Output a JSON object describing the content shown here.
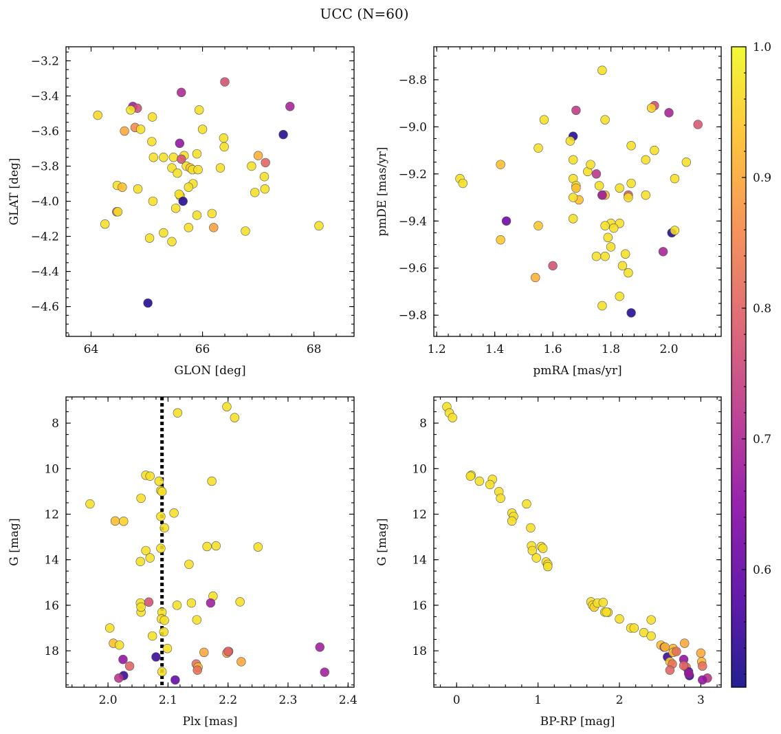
{
  "figure": {
    "title": "UCC (N=60)"
  },
  "colorbar": {
    "range": [
      0.51,
      1.0
    ],
    "ticks": [
      0.6,
      0.7,
      0.8,
      0.9,
      1.0
    ],
    "tick_labels": [
      "0.6",
      "0.7",
      "0.8",
      "0.9",
      "1.0"
    ],
    "colormap": [
      "#0d0887",
      "#5302a3",
      "#8b0aa5",
      "#b83289",
      "#db5c68",
      "#f48849",
      "#febd2a",
      "#f0f921"
    ]
  },
  "chart_data": [
    {
      "type": "scatter",
      "name": "panel-glon-glat",
      "xlabel": "GLON [deg]",
      "ylabel": "GLAT [deg]",
      "xlim": [
        63.55,
        68.72
      ],
      "ylim": [
        -4.77,
        -3.12
      ],
      "y_inverted": false,
      "xticks": [
        64,
        66,
        68
      ],
      "xtick_labels": [
        "64",
        "66",
        "68"
      ],
      "yticks": [
        -4.6,
        -4.4,
        -4.2,
        -4.0,
        -3.8,
        -3.6,
        -3.4,
        -3.2
      ],
      "ytick_labels": [
        "−4.6",
        "−4.4",
        "−4.2",
        "−4.0",
        "−3.8",
        "−3.6",
        "−3.4",
        "−3.2"
      ],
      "x": [
        64.12,
        64.75,
        64.83,
        64.6,
        64.79,
        64.89,
        64.71,
        65.1,
        65.09,
        65.62,
        65.59,
        65.94,
        66.0,
        64.47,
        64.84,
        64.46,
        64.56,
        65.12,
        65.3,
        65.48,
        65.45,
        65.55,
        65.67,
        65.71,
        65.62,
        65.78,
        65.83,
        65.9,
        65.6,
        65.75,
        65.82,
        66.38,
        66.39,
        65.52,
        65.58,
        65.9,
        66.32,
        66.88,
        67.0,
        67.11,
        67.12,
        64.25,
        64.48,
        65.11,
        65.05,
        65.3,
        65.45,
        65.75,
        66.17,
        66.2,
        66.77,
        68.09,
        67.45,
        67.57,
        67.13,
        66.94,
        66.4,
        65.02,
        65.65,
        65.92
      ],
      "y": [
        -3.51,
        -3.46,
        -3.47,
        -3.6,
        -3.58,
        -3.59,
        -3.48,
        -3.52,
        -3.66,
        -3.38,
        -3.67,
        -3.48,
        -3.59,
        -3.91,
        -3.93,
        -4.06,
        -3.92,
        -3.75,
        -3.75,
        -3.75,
        -3.81,
        -3.84,
        -3.74,
        -3.8,
        -3.76,
        -3.81,
        -3.9,
        -3.73,
        -3.97,
        -3.92,
        -3.82,
        -3.64,
        -3.69,
        -4.04,
        -3.96,
        -4.08,
        -3.81,
        -3.8,
        -3.74,
        -3.86,
        -3.93,
        -4.13,
        -4.06,
        -4.0,
        -4.21,
        -4.18,
        -4.23,
        -4.15,
        -4.07,
        -4.15,
        -4.17,
        -4.14,
        -3.62,
        -3.46,
        -3.78,
        -3.95,
        -3.32,
        -4.58,
        -4.0,
        -3.82
      ],
      "c": [
        0.96,
        0.68,
        0.76,
        0.9,
        0.86,
        0.97,
        0.98,
        0.97,
        0.97,
        0.7,
        0.66,
        0.97,
        0.97,
        0.97,
        0.97,
        0.79,
        0.93,
        0.97,
        0.97,
        0.97,
        0.97,
        0.97,
        0.97,
        0.97,
        0.77,
        0.94,
        0.97,
        0.97,
        0.97,
        0.97,
        0.97,
        0.97,
        0.97,
        0.97,
        0.97,
        0.97,
        0.97,
        0.97,
        0.91,
        0.97,
        0.97,
        0.97,
        0.97,
        0.97,
        0.97,
        0.97,
        0.97,
        0.97,
        0.97,
        0.89,
        0.97,
        0.97,
        0.53,
        0.69,
        0.8,
        0.97,
        0.77,
        0.53,
        0.53,
        0.97
      ]
    },
    {
      "type": "scatter",
      "name": "panel-pmra-pmde",
      "xlabel": "pmRA [mas/yr]",
      "ylabel": "pmDE [mas/yr]",
      "xlim": [
        1.19,
        2.18
      ],
      "ylim": [
        -9.89,
        -8.66
      ],
      "y_inverted": false,
      "xticks": [
        1.2,
        1.4,
        1.6,
        1.8,
        2.0
      ],
      "xtick_labels": [
        "1.2",
        "1.4",
        "1.6",
        "1.8",
        "2.0"
      ],
      "yticks": [
        -9.8,
        -9.6,
        -9.4,
        -9.2,
        -9.0,
        -8.8
      ],
      "ytick_labels": [
        "−9.8",
        "−9.6",
        "−9.4",
        "−9.2",
        "−9.0",
        "−8.8"
      ],
      "x": [
        1.77,
        1.68,
        1.57,
        1.67,
        1.78,
        1.95,
        1.94,
        2.0,
        2.1,
        1.87,
        1.95,
        1.66,
        1.67,
        1.55,
        1.42,
        1.28,
        1.29,
        1.67,
        1.68,
        1.72,
        1.73,
        1.75,
        1.76,
        1.78,
        1.87,
        1.92,
        2.06,
        2.02,
        1.68,
        1.69,
        1.77,
        1.67,
        1.86,
        1.83,
        1.86,
        1.92,
        1.44,
        1.55,
        1.42,
        1.83,
        1.79,
        1.8,
        1.81,
        1.67,
        1.84,
        1.78,
        1.75,
        1.8,
        1.77,
        1.78,
        1.85,
        2.01,
        2.02,
        1.98,
        1.6,
        1.54,
        1.87,
        1.77,
        1.83,
        1.86
      ],
      "y": [
        -8.76,
        -8.93,
        -8.97,
        -9.04,
        -8.97,
        -8.91,
        -8.92,
        -8.94,
        -8.99,
        -9.08,
        -9.1,
        -9.06,
        -9.14,
        -9.09,
        -9.16,
        -9.22,
        -9.24,
        -9.22,
        -9.25,
        -9.19,
        -9.16,
        -9.2,
        -9.25,
        -9.29,
        -9.24,
        -9.14,
        -9.15,
        -9.22,
        -9.26,
        -9.31,
        -9.29,
        -9.3,
        -9.29,
        -9.26,
        -9.3,
        -9.29,
        -9.4,
        -9.42,
        -9.48,
        -9.41,
        -9.47,
        -9.41,
        -9.43,
        -9.39,
        -9.59,
        -9.55,
        -9.55,
        -9.51,
        -9.76,
        -9.42,
        -9.54,
        -9.45,
        -9.44,
        -9.53,
        -9.59,
        -9.64,
        -9.79,
        -9.29,
        -9.72,
        -9.62
      ],
      "c": [
        0.97,
        0.73,
        0.97,
        0.53,
        0.97,
        0.76,
        0.95,
        0.69,
        0.78,
        0.97,
        0.97,
        0.97,
        0.97,
        0.97,
        0.93,
        0.97,
        0.97,
        0.97,
        0.97,
        0.97,
        0.97,
        0.72,
        0.97,
        0.92,
        0.97,
        0.97,
        0.97,
        0.97,
        0.93,
        0.93,
        0.97,
        0.97,
        0.79,
        0.97,
        0.97,
        0.97,
        0.61,
        0.94,
        0.94,
        0.97,
        0.97,
        0.97,
        0.97,
        0.97,
        0.97,
        0.97,
        0.97,
        0.97,
        0.97,
        0.97,
        0.97,
        0.53,
        0.97,
        0.69,
        0.77,
        0.91,
        0.53,
        0.67,
        0.97,
        0.97
      ]
    },
    {
      "type": "scatter",
      "name": "panel-plx-g",
      "xlabel": "Plx [mas]",
      "ylabel": "G [mag]",
      "xlim": [
        1.93,
        2.41
      ],
      "ylim": [
        19.6,
        6.85
      ],
      "y_inverted": true,
      "reference_line": {
        "x": 2.09,
        "style": "dotted"
      },
      "xticks": [
        2.0,
        2.1,
        2.2,
        2.3,
        2.4
      ],
      "xtick_labels": [
        "2.0",
        "2.1",
        "2.2",
        "2.3",
        "2.4"
      ],
      "yticks": [
        8,
        10,
        12,
        14,
        16,
        18
      ],
      "ytick_labels": [
        "8",
        "10",
        "12",
        "14",
        "16",
        "18"
      ],
      "x": [
        2.198,
        2.211,
        2.116,
        1.97,
        2.063,
        2.07,
        2.085,
        2.088,
        2.09,
        2.055,
        2.173,
        2.11,
        2.012,
        2.026,
        2.088,
        2.094,
        2.063,
        2.07,
        2.054,
        2.088,
        2.135,
        2.165,
        2.18,
        2.25,
        2.175,
        2.054,
        2.055,
        2.068,
        2.09,
        2.115,
        2.139,
        2.171,
        2.22,
        2.055,
        2.089,
        2.094,
        2.148,
        2.003,
        2.009,
        2.019,
        2.074,
        2.093,
        2.099,
        2.16,
        2.198,
        2.201,
        2.222,
        2.147,
        2.15,
        2.09,
        2.025,
        2.036,
        2.2,
        2.08,
        2.026,
        2.018,
        2.112,
        2.353,
        2.361,
        2.149
      ],
      "y": [
        7.28,
        7.76,
        7.55,
        11.55,
        10.29,
        10.33,
        10.55,
        10.96,
        11.01,
        11.3,
        10.55,
        11.95,
        12.3,
        12.31,
        12.1,
        12.6,
        13.6,
        13.92,
        14.08,
        13.5,
        14.2,
        13.42,
        13.39,
        13.44,
        15.6,
        15.9,
        16.3,
        15.86,
        16.31,
        16.0,
        15.9,
        15.9,
        15.85,
        16.08,
        16.6,
        16.66,
        16.64,
        17.0,
        17.67,
        17.75,
        17.35,
        17.17,
        17.9,
        18.07,
        18.1,
        18.03,
        18.48,
        18.58,
        18.72,
        18.92,
        18.38,
        18.67,
        18.03,
        18.27,
        19.09,
        19.2,
        19.28,
        17.84,
        18.94,
        18.85
      ],
      "c": [
        0.97,
        0.97,
        0.97,
        0.97,
        0.97,
        0.97,
        0.97,
        0.97,
        0.97,
        0.97,
        0.97,
        0.97,
        0.93,
        0.95,
        0.97,
        0.97,
        0.97,
        0.97,
        0.97,
        0.97,
        0.97,
        0.97,
        0.97,
        0.97,
        0.97,
        0.97,
        0.97,
        0.77,
        0.97,
        0.97,
        0.97,
        0.68,
        0.97,
        0.97,
        0.97,
        0.97,
        0.97,
        0.97,
        0.93,
        0.97,
        0.97,
        0.97,
        0.97,
        0.9,
        0.9,
        0.82,
        0.9,
        0.82,
        0.92,
        0.97,
        0.66,
        0.8,
        0.8,
        0.55,
        0.55,
        0.72,
        0.6,
        0.68,
        0.68,
        0.82
      ]
    },
    {
      "type": "scatter",
      "name": "panel-bprp-g",
      "xlabel": "BP-RP [mag]",
      "ylabel": "G [mag]",
      "xlim": [
        -0.28,
        3.25
      ],
      "ylim": [
        19.6,
        6.85
      ],
      "y_inverted": true,
      "xticks": [
        0,
        1,
        2,
        3
      ],
      "xtick_labels": [
        "0",
        "1",
        "2",
        "3"
      ],
      "yticks": [
        8,
        10,
        12,
        14,
        16,
        18
      ],
      "ytick_labels": [
        "8",
        "10",
        "12",
        "14",
        "16",
        "18"
      ],
      "x": [
        -0.12,
        -0.09,
        -0.05,
        0.18,
        0.17,
        0.28,
        0.44,
        0.41,
        0.52,
        0.54,
        0.68,
        0.7,
        0.68,
        0.86,
        0.91,
        0.92,
        0.93,
        0.98,
        1.04,
        1.06,
        1.1,
        1.12,
        1.12,
        1.65,
        1.67,
        1.69,
        1.73,
        1.8,
        1.82,
        1.86,
        1.84,
        2.0,
        2.14,
        2.18,
        2.3,
        2.39,
        2.39,
        2.51,
        2.55,
        2.59,
        2.62,
        2.65,
        2.68,
        2.66,
        2.79,
        2.8,
        2.82,
        2.85,
        2.86,
        3.0,
        3.01,
        3.02,
        3.08,
        3.02,
        2.62,
        2.79,
        2.85,
        2.66,
        2.7,
        2.56
      ],
      "y": [
        7.28,
        7.55,
        7.76,
        10.29,
        10.33,
        10.55,
        10.47,
        10.7,
        11.01,
        11.3,
        11.95,
        12.1,
        12.3,
        11.55,
        12.6,
        13.39,
        13.6,
        13.92,
        13.42,
        13.5,
        14.1,
        14.2,
        14.3,
        15.85,
        16.0,
        16.08,
        15.9,
        15.88,
        16.3,
        16.31,
        16.3,
        16.6,
        17.0,
        17.0,
        17.2,
        17.35,
        16.64,
        17.75,
        17.84,
        18.27,
        18.48,
        18.58,
        18.03,
        17.9,
        18.38,
        17.67,
        18.72,
        18.92,
        19.09,
        18.1,
        18.48,
        18.67,
        19.2,
        19.28,
        18.85,
        18.65,
        19.0,
        18.07,
        18.03,
        17.84
      ],
      "c": [
        0.97,
        0.97,
        0.97,
        0.97,
        0.97,
        0.97,
        0.97,
        0.97,
        0.97,
        0.97,
        0.97,
        0.97,
        0.97,
        0.97,
        0.97,
        0.97,
        0.97,
        0.97,
        0.97,
        0.97,
        0.97,
        0.97,
        0.97,
        0.97,
        0.97,
        0.95,
        0.97,
        0.97,
        0.97,
        0.97,
        0.97,
        0.97,
        0.97,
        0.97,
        0.97,
        0.97,
        0.97,
        0.93,
        0.68,
        0.55,
        0.94,
        0.82,
        0.9,
        0.92,
        0.66,
        0.9,
        0.82,
        0.6,
        0.55,
        0.9,
        0.92,
        0.82,
        0.72,
        0.66,
        0.8,
        0.8,
        0.68,
        0.93,
        0.82,
        0.93
      ]
    }
  ]
}
